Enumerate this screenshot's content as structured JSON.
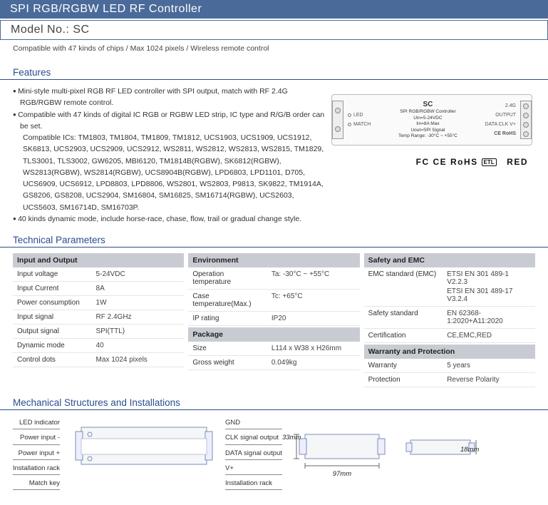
{
  "header": {
    "title": "SPI RGB/RGBW LED RF Controller",
    "model": "Model No.: SC",
    "tagline": "Compatible with 47 kinds of chips / Max 1024 pixels / Wireless remote control"
  },
  "features": {
    "heading": "Features",
    "items": [
      "Mini-style multi-pixel RGB RF LED controller with SPI output, match with RF 2.4G RGB/RGBW remote control.",
      "Compatible with 47 kinds of digital IC RGB or RGBW LED strip, IC type and R/G/B order can be set.",
      "40 kinds dynamic mode, include horse-race, chase, flow, trail or gradual change style."
    ],
    "ic_label": "Compatible ICs: TM1803, TM1804, TM1809, TM1812, UCS1903, UCS1909, UCS1912, SK6813, UCS2903, UCS2909, UCS2912, WS2811, WS2812, WS2813, WS2815, TM1829, TLS3001, TLS3002, GW6205, MBI6120, TM1814B(RGBW), SK6812(RGBW), WS2813(RGBW), WS2814(RGBW), UCS8904B(RGBW), LPD6803, LPD1101, D705, UCS6909, UCS6912, LPD8803, LPD8806, WS2801, WS2803, P9813, SK9822, TM1914A, GS8206, GS8208, UCS2904, SM16804, SM16825, SM16714(RGBW), UCS2603, UCS5603, SM16714D, SM16703P."
  },
  "device": {
    "led_label": "LED",
    "match_label": "MATCH",
    "name": "SC",
    "sub": "SPI RGB/RGBW Controller",
    "spec1": "Uin=5-24VDC",
    "spec2": "Iin=8A Max",
    "spec3": "Uout=SPI Signal",
    "spec4": "Temp Range: -30°C ~ +55°C",
    "rf": "2.4G",
    "output": "OUTPUT",
    "pins": "DATA CLK V+",
    "rohs": "CE  RoHS"
  },
  "certs": {
    "fc": "FC",
    "ce": "CE",
    "rohs": "RoHS",
    "etl": "ETL",
    "red": "RED"
  },
  "tech": {
    "heading": "Technical Parameters",
    "io_h": "Input and Output",
    "io": [
      {
        "k": "Input voltage",
        "v": "5-24VDC"
      },
      {
        "k": "Input Current",
        "v": "8A"
      },
      {
        "k": "Power consumption",
        "v": "1W"
      },
      {
        "k": "Input signal",
        "v": "RF 2.4GHz"
      },
      {
        "k": "Output signal",
        "v": "SPI(TTL)"
      },
      {
        "k": "Dynamic mode",
        "v": "40"
      },
      {
        "k": "Control dots",
        "v": "Max 1024 pixels"
      }
    ],
    "env_h": "Environment",
    "env": [
      {
        "k": "Operation temperature",
        "v": "Ta: -30°C ~ +55°C"
      },
      {
        "k": "Case temperature(Max.)",
        "v": "Tc: +65°C"
      },
      {
        "k": "IP rating",
        "v": "IP20"
      }
    ],
    "pkg_h": "Package",
    "pkg": [
      {
        "k": "Size",
        "v": "L114 x W38 x H26mm"
      },
      {
        "k": "Gross weight",
        "v": "0.049kg"
      }
    ],
    "safe_h": "Safety and EMC",
    "safe_emc_k": "EMC standard (EMC)",
    "safe_emc_v1": "ETSI EN 301 489-1 V2.2.3",
    "safe_emc_v2": "ETSI EN 301 489-17 V3.2.4",
    "safe": [
      {
        "k": "Safety standard",
        "v": "EN 62368-1:2020+A11:2020"
      },
      {
        "k": "Certification",
        "v": "CE,EMC,RED"
      }
    ],
    "warr_h": "Warranty and Protection",
    "warr": [
      {
        "k": "Warranty",
        "v": "5 years"
      },
      {
        "k": "Protection",
        "v": "Reverse Polarity"
      }
    ]
  },
  "mech": {
    "heading": "Mechanical Structures and Installations",
    "left": [
      "LED indicator",
      "Power input -",
      "Power input +",
      "Installation rack",
      "Match key"
    ],
    "right": [
      "GND",
      "CLK signal output",
      "DATA signal output",
      "V+",
      "Installation rack"
    ],
    "dims": {
      "w": "97mm",
      "h": "33mm",
      "d": "18mm"
    }
  }
}
